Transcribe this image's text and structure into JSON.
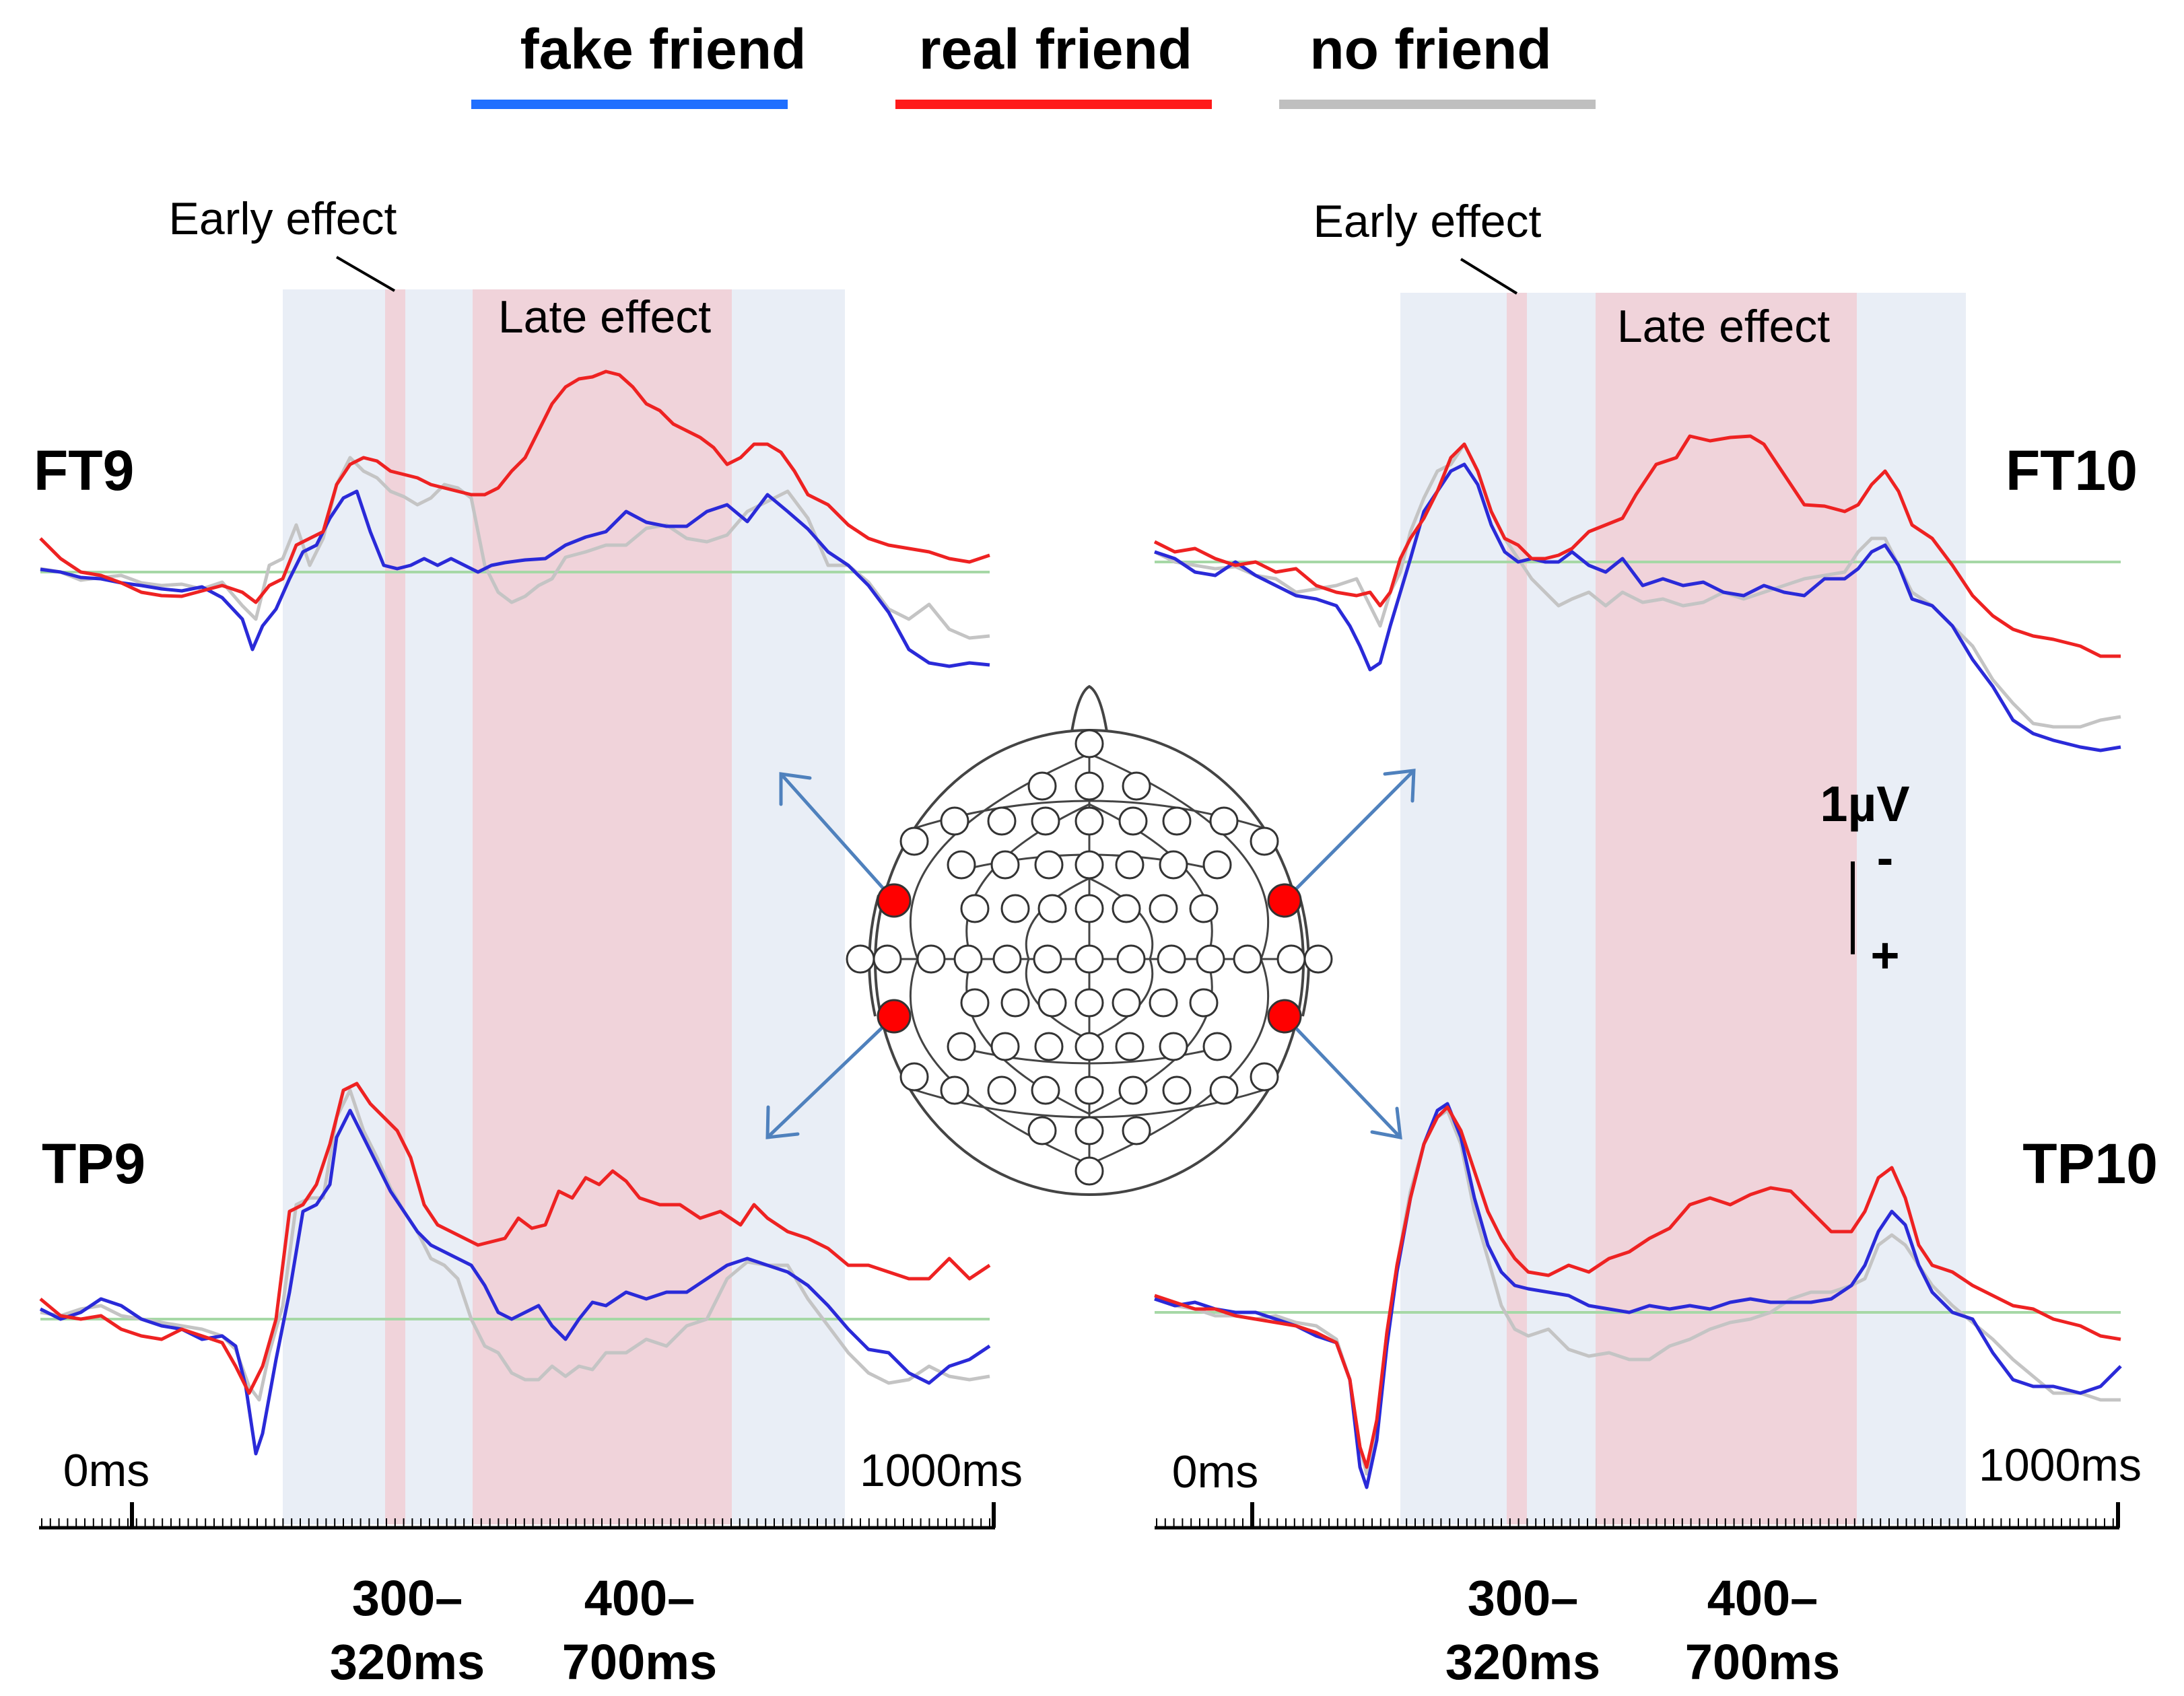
{
  "chart_data": {
    "type": "line",
    "title": "",
    "xlabel": "",
    "ylabel": "",
    "x_unit": "ms",
    "x_range": [
      -100,
      1000
    ],
    "legend": [
      {
        "label": "fake friend",
        "color": "#1f4cff"
      },
      {
        "label": "real friend",
        "color": "#ff1a1a"
      },
      {
        "label": "no friend",
        "color": "#bfbfbf"
      }
    ],
    "scale_bar": {
      "label": "1µV",
      "minus": "-",
      "plus": "+"
    },
    "baseline_color": "#a6d8a6",
    "band_colors": {
      "context": "#e9eef6",
      "effect": "#f0d3da"
    },
    "windows": {
      "context": [
        [
          170,
          800
        ],
        [
          300,
          400
        ]
      ],
      "early": {
        "label": "Early effect",
        "range": [
          300,
          320
        ],
        "tick": "300–\n320ms"
      },
      "late": {
        "label": "Late effect",
        "range": [
          400,
          700
        ],
        "tick": "400–\n700ms"
      }
    },
    "axis": {
      "start_label": "0ms",
      "end_label": "1000ms"
    },
    "x_samples": [
      -100,
      -50,
      0,
      50,
      100,
      150,
      200,
      250,
      300,
      350,
      400,
      450,
      500,
      550,
      600,
      650,
      700,
      750,
      800,
      850,
      900,
      950,
      1000
    ],
    "panels": [
      {
        "electrode": "FT9",
        "side": "left",
        "row": "top",
        "series": [
          {
            "name": "fake friend",
            "values": [
              0.1,
              0.0,
              -0.3,
              -0.2,
              -0.6,
              0.0,
              1.7,
              0.3,
              0.2,
              0.1,
              0.0,
              0.4,
              1.2,
              0.7,
              1.4,
              1.0,
              1.4,
              0.2,
              -0.4,
              -1.2,
              -1.6,
              -1.8,
              -1.7
            ]
          },
          {
            "name": "real friend",
            "values": [
              0.5,
              -0.1,
              -0.2,
              -0.4,
              -0.3,
              -0.1,
              1.9,
              1.7,
              1.3,
              1.5,
              1.2,
              2.8,
              4.2,
              4.5,
              3.5,
              2.5,
              2.4,
              1.3,
              0.7,
              0.3,
              0.1,
              0.0,
              0.1
            ]
          },
          {
            "name": "no friend",
            "values": [
              0.0,
              -0.2,
              -0.3,
              -0.4,
              -0.5,
              0.4,
              2.1,
              1.5,
              1.6,
              1.3,
              -0.3,
              0.3,
              0.6,
              0.9,
              0.7,
              1.1,
              1.8,
              0.6,
              -0.2,
              -0.9,
              -1.2,
              -1.4,
              -1.3
            ]
          }
        ]
      },
      {
        "electrode": "FT10",
        "side": "right",
        "row": "top",
        "series": [
          {
            "name": "fake friend",
            "values": [
              0.2,
              0.0,
              -0.3,
              -0.5,
              -0.9,
              -2.0,
              2.0,
              1.5,
              0.0,
              0.1,
              -0.2,
              0.2,
              -0.3,
              -0.4,
              0.0,
              0.5,
              0.3,
              0.4,
              -1.0,
              -2.0,
              -3.0,
              -3.5,
              -3.4
            ]
          },
          {
            "name": "real friend",
            "values": [
              0.4,
              0.1,
              -0.2,
              -0.3,
              -0.4,
              -1.0,
              2.2,
              1.6,
              0.2,
              0.4,
              0.6,
              1.3,
              2.5,
              2.9,
              2.8,
              1.9,
              2.0,
              1.2,
              0.0,
              -1.0,
              -1.6,
              -2.0,
              -1.9
            ]
          },
          {
            "name": "no friend",
            "values": [
              0.0,
              0.0,
              -0.3,
              -0.3,
              -0.5,
              -1.5,
              2.2,
              1.3,
              -0.3,
              -0.7,
              -0.8,
              -0.4,
              -0.3,
              -0.2,
              0.0,
              0.2,
              0.4,
              0.2,
              -1.0,
              -2.0,
              -2.8,
              -3.0,
              -3.0
            ]
          }
        ]
      },
      {
        "electrode": "TP9",
        "side": "left",
        "row": "bottom",
        "series": [
          {
            "name": "fake friend",
            "values": [
              0.0,
              -0.3,
              0.0,
              -0.7,
              -0.8,
              -2.0,
              2.8,
              4.2,
              2.2,
              1.2,
              0.1,
              -0.3,
              -0.6,
              0.0,
              0.3,
              0.8,
              1.1,
              1.0,
              -0.3,
              -1.2,
              -1.5,
              -1.8,
              -1.5
            ]
          },
          {
            "name": "real friend",
            "values": [
              0.1,
              0.0,
              -0.5,
              -0.3,
              -0.7,
              -1.2,
              3.0,
              4.7,
              2.9,
              1.8,
              1.2,
              1.9,
              3.0,
              2.5,
              2.0,
              2.2,
              1.5,
              1.2,
              1.0,
              0.8,
              1.0,
              0.7,
              0.9
            ]
          },
          {
            "name": "no friend",
            "values": [
              0.0,
              -0.2,
              0.0,
              -0.5,
              -0.6,
              -1.1,
              2.6,
              4.2,
              2.4,
              0.5,
              -0.5,
              -1.3,
              -0.8,
              -0.6,
              0.0,
              0.8,
              1.4,
              1.2,
              -0.2,
              -0.8,
              -1.5,
              -1.3,
              -1.2
            ]
          }
        ]
      },
      {
        "electrode": "TP10",
        "side": "right",
        "row": "bottom",
        "series": [
          {
            "name": "fake friend",
            "values": [
              0.1,
              0.0,
              -0.2,
              -0.5,
              -1.0,
              -4.0,
              3.8,
              4.7,
              2.0,
              1.0,
              0.3,
              0.2,
              0.0,
              0.2,
              0.4,
              0.5,
              0.3,
              1.0,
              2.2,
              0.0,
              -0.3,
              -1.6,
              -1.3
            ]
          },
          {
            "name": "real friend",
            "values": [
              0.2,
              0.1,
              0.0,
              -0.3,
              -0.6,
              -3.8,
              3.5,
              4.8,
              2.5,
              1.5,
              0.6,
              1.3,
              2.2,
              2.7,
              3.0,
              2.0,
              2.6,
              1.5,
              3.2,
              0.8,
              0.6,
              -0.5,
              -0.4
            ]
          },
          {
            "name": "no friend",
            "values": [
              0.0,
              -0.1,
              -0.2,
              -0.5,
              -0.9,
              -3.6,
              3.7,
              4.5,
              1.5,
              -0.3,
              -0.8,
              -1.0,
              -0.6,
              0.0,
              0.4,
              0.4,
              0.6,
              1.5,
              2.0,
              0.2,
              -0.3,
              -1.3,
              -1.7
            ]
          }
        ]
      }
    ]
  },
  "headmap": {
    "highlight_color": "#ff0000",
    "highlighted": [
      "FT9",
      "FT10",
      "TP9",
      "TP10"
    ]
  }
}
